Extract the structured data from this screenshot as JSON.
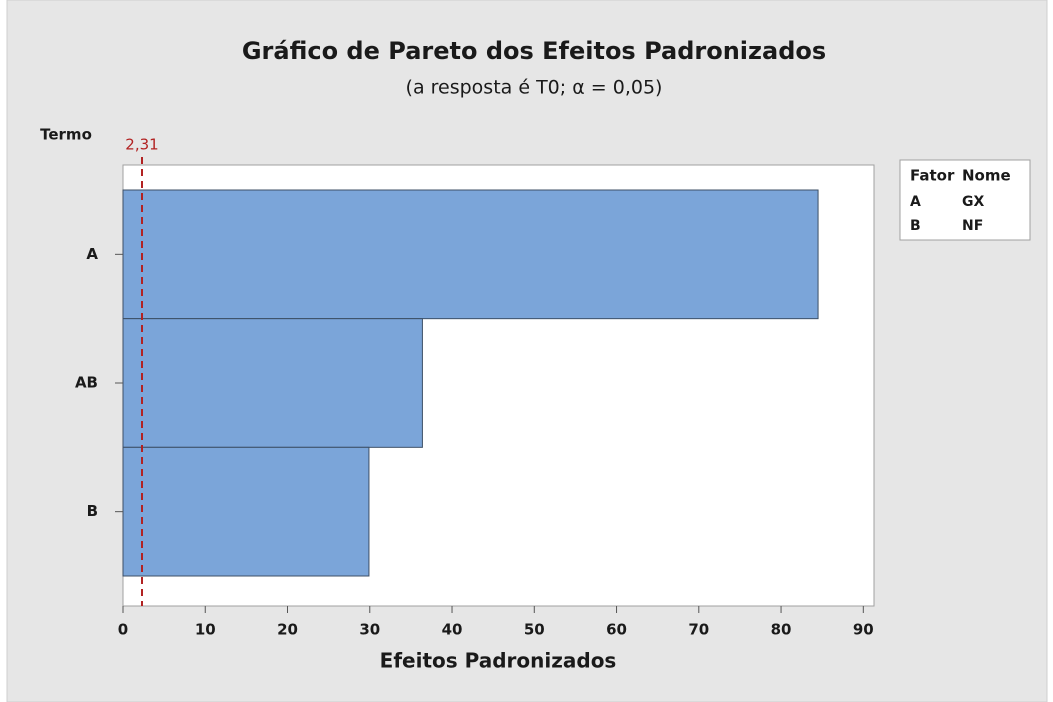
{
  "chart_data": {
    "type": "bar",
    "orientation": "horizontal",
    "title": "Gráfico de Pareto dos Efeitos Padronizados",
    "subtitle": "(a resposta é  T0; α = 0,05)",
    "x_label": "Efeitos Padronizados",
    "y_label": "Termo",
    "categories": [
      "A",
      "AB",
      "B"
    ],
    "values": [
      84.5,
      36.4,
      29.9
    ],
    "color": "#7ba5d9",
    "xlim": [
      0,
      91.3
    ],
    "xticks": [
      0,
      10,
      20,
      30,
      40,
      50,
      60,
      70,
      80,
      90
    ],
    "reference_line": {
      "value": 2.31,
      "label": "2,31",
      "color": "#b22222"
    },
    "legend_table": {
      "headers": [
        "Fator",
        "Nome"
      ],
      "rows": [
        [
          "A",
          "GX"
        ],
        [
          "B",
          "NF"
        ]
      ]
    }
  }
}
